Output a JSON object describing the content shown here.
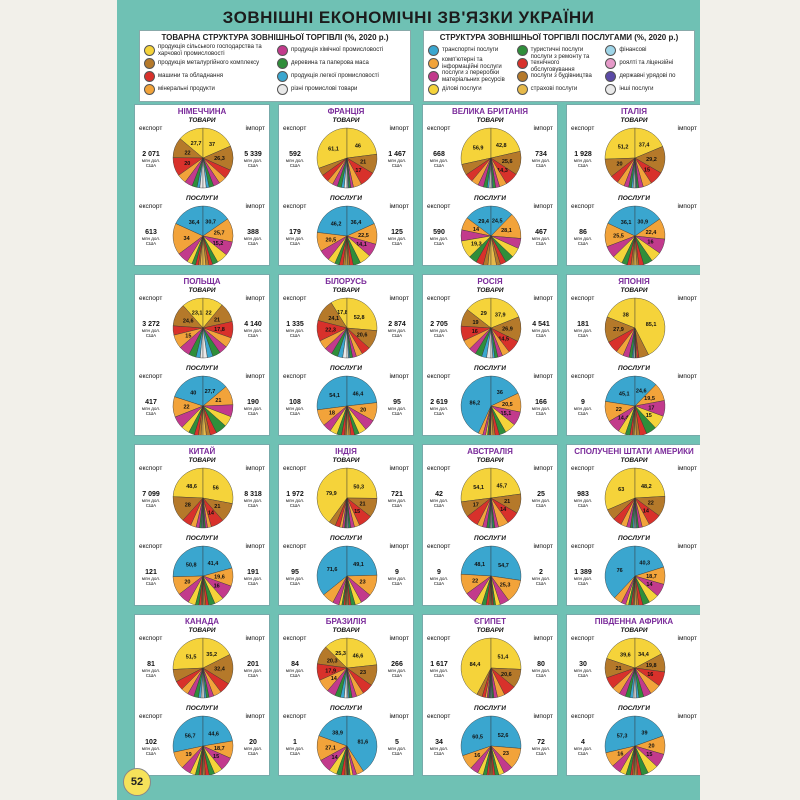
{
  "title": "ЗОВНІШНІ ЕКОНОМІЧНІ ЗВ'ЯЗКИ УКРАЇНИ",
  "page_number": "52",
  "legend_goods": {
    "title": "ТОВАРНА СТРУКТУРА ЗОВНІШНЬОЇ ТОРГІВЛІ (%, 2020 р.)",
    "items": [
      {
        "label": "продукція сільського господарства та харчової промисловості",
        "color": "#f5d33a"
      },
      {
        "label": "продукція металургійного комплексу",
        "color": "#b5792a"
      },
      {
        "label": "машини та обладнання",
        "color": "#d8312b"
      },
      {
        "label": "мінеральні продукти",
        "color": "#f2a33a"
      },
      {
        "label": "продукція хімічної промисловості",
        "color": "#c23a8c"
      },
      {
        "label": "деревина та паперова маса",
        "color": "#2f8e3a"
      },
      {
        "label": "продукція легкої промисловості",
        "color": "#3aa6cf"
      },
      {
        "label": "різні промислові товари",
        "color": "#e9e9e9"
      }
    ]
  },
  "legend_services": {
    "title": "СТРУКТУРА ЗОВНІШНЬОЇ ТОРГІВЛІ ПОСЛУГАМИ (%, 2020 р.)",
    "items": [
      {
        "label": "транспортні послуги",
        "color": "#3aa6cf"
      },
      {
        "label": "комп'ютерні та інформаційні послуги",
        "color": "#f2a33a"
      },
      {
        "label": "послуги з переробки матеріальних ресурсів",
        "color": "#c23a8c"
      },
      {
        "label": "ділові послуги",
        "color": "#f5d33a"
      },
      {
        "label": "туристичні послуги",
        "color": "#2f8e3a"
      },
      {
        "label": "послуги з ремонту та технічного обслуговування",
        "color": "#d8312b"
      },
      {
        "label": "послуги з будівництва",
        "color": "#b5792a"
      },
      {
        "label": "страхові послуги",
        "color": "#e6b94a"
      },
      {
        "label": "фінансові",
        "color": "#9fd5e8"
      },
      {
        "label": "роялті та ліцензійні",
        "color": "#e69ac9"
      },
      {
        "label": "державні урядові по",
        "color": "#5b4aa6"
      },
      {
        "label": "інші послуги",
        "color": "#e9e9e9"
      }
    ]
  },
  "labels": {
    "goods": "ТОВАРИ",
    "services": "ПОСЛУГИ",
    "export": "експорт",
    "import": "імпорт",
    "unit": "млн дол. США"
  },
  "chart_data": [
    {
      "type": "pie",
      "country": "НІМЕЧЧИНА",
      "goods": {
        "export_total": "2 071",
        "import_total": "5 339",
        "export": [
          27.7,
          22.0,
          20.0,
          10.0,
          8.5,
          5.4,
          3.0,
          3.4
        ],
        "import": [
          37.0,
          26.3,
          10.0,
          8.1,
          7.0,
          5.0,
          3.2,
          3.4
        ]
      },
      "services": {
        "export_total": "613",
        "import_total": "388",
        "export": [
          36.4,
          34.0,
          12.0,
          5.6,
          4.0,
          3.0,
          2.0,
          3.0
        ],
        "import": [
          30.7,
          25.7,
          15.2,
          12.0,
          6.0,
          4.0,
          3.4,
          3.0
        ]
      }
    },
    {
      "type": "pie",
      "country": "ФРАНЦІЯ",
      "goods": {
        "export_total": "592",
        "import_total": "1 467",
        "export": [
          61.1,
          8.6,
          8.1,
          6.2,
          5.5,
          4.5,
          3.0,
          3.0
        ],
        "import": [
          46.0,
          21.0,
          17.0,
          9.0,
          3.0,
          2.0,
          1.0,
          1.0
        ]
      },
      "services": {
        "export_total": "179",
        "import_total": "125",
        "export": [
          46.2,
          20.5,
          12.0,
          8.0,
          5.0,
          4.0,
          2.3,
          2.0
        ],
        "import": [
          36.4,
          22.5,
          14.1,
          12.2,
          8.0,
          3.9,
          2.0,
          0.9
        ]
      }
    },
    {
      "type": "pie",
      "country": "ВЕЛИКА БРИТАНІЯ",
      "goods": {
        "export_total": "668",
        "import_total": "734",
        "export": [
          56.9,
          12.0,
          9.0,
          8.0,
          6.0,
          4.0,
          2.0,
          2.1
        ],
        "import": [
          42.8,
          25.6,
          14.3,
          8.0,
          4.3,
          3.0,
          1.0,
          1.0
        ]
      },
      "services": {
        "export_total": "590",
        "import_total": "467",
        "export": [
          29.4,
          14.0,
          12.0,
          19.3,
          9.0,
          8.0,
          5.0,
          3.3
        ],
        "import": [
          24.5,
          28.1,
          11.0,
          10.7,
          9.1,
          6.3,
          4.4,
          5.9
        ]
      }
    },
    {
      "type": "pie",
      "country": "ІТАЛІЯ",
      "goods": {
        "export_total": "1 928",
        "import_total": "",
        "export": [
          51.2,
          20.0,
          9.0,
          8.0,
          5.0,
          3.0,
          2.0,
          1.8
        ],
        "import": [
          37.4,
          29.2,
          15.0,
          9.5,
          5.0,
          2.2,
          1.0,
          0.7
        ]
      },
      "services": {
        "export_total": "86",
        "import_total": "",
        "export": [
          36.1,
          25.5,
          13.0,
          11.0,
          6.0,
          4.0,
          2.4,
          2.0
        ],
        "import": [
          30.9,
          22.4,
          16.0,
          11.5,
          9.7,
          5.3,
          2.2,
          2.0
        ]
      }
    },
    {
      "type": "pie",
      "country": "ПОЛЬЩА",
      "goods": {
        "export_total": "3 272",
        "import_total": "4 140",
        "export": [
          23.1,
          24.6,
          10.0,
          15.0,
          11.8,
          8.0,
          4.5,
          3.0
        ],
        "import": [
          22.0,
          21.0,
          17.8,
          11.0,
          9.0,
          8.5,
          6.1,
          4.6
        ]
      },
      "services": {
        "export_total": "417",
        "import_total": "190",
        "export": [
          40.0,
          22.0,
          13.3,
          9.0,
          6.4,
          4.2,
          3.1,
          2.0
        ],
        "import": [
          27.7,
          21.0,
          13.0,
          11.4,
          12.0,
          7.0,
          4.3,
          3.6
        ]
      }
    },
    {
      "type": "pie",
      "country": "БІЛОРУСЬ",
      "goods": {
        "export_total": "1 335",
        "import_total": "2 874",
        "export": [
          17.8,
          24.1,
          22.3,
          10.1,
          8.5,
          7.1,
          5.5,
          4.6
        ],
        "import": [
          52.8,
          20.6,
          9.5,
          6.9,
          4.2,
          3.0,
          1.5,
          1.5
        ]
      },
      "services": {
        "export_total": "108",
        "import_total": "95",
        "export": [
          54.1,
          18.0,
          9.0,
          8.0,
          5.0,
          3.3,
          1.5,
          1.1
        ],
        "import": [
          46.4,
          20.0,
          12.0,
          8.4,
          5.0,
          4.0,
          2.2,
          2.0
        ]
      }
    },
    {
      "type": "pie",
      "country": "РОСІЯ",
      "goods": {
        "export_total": "2 705",
        "import_total": "4 541",
        "export": [
          29.0,
          19.0,
          16.0,
          10.6,
          8.0,
          7.4,
          5.3,
          4.7
        ],
        "import": [
          37.9,
          26.9,
          14.5,
          8.2,
          5.1,
          3.4,
          2.2,
          1.8
        ]
      },
      "services": {
        "export_total": "2 619",
        "import_total": "166",
        "export": [
          86.2,
          5.0,
          3.0,
          2.0,
          1.5,
          1.1,
          0.7,
          0.5
        ],
        "import": [
          36.0,
          20.5,
          15.1,
          12.0,
          7.4,
          4.5,
          2.5,
          2.0
        ]
      }
    },
    {
      "type": "pie",
      "country": "ЯПОНІЯ",
      "goods": {
        "export_total": "181",
        "import_total": "",
        "export": [
          38.0,
          27.9,
          13.0,
          8.0,
          6.7,
          3.4,
          1.5,
          1.5
        ],
        "import": [
          85.1,
          10.8,
          2.0,
          1.1,
          0.5,
          0.3,
          0.1,
          0.1
        ]
      },
      "services": {
        "export_total": "9",
        "import_total": "",
        "export": [
          45.1,
          22.0,
          14.4,
          8.0,
          5.0,
          2.6,
          1.7,
          1.2
        ],
        "import": [
          24.6,
          19.5,
          17.0,
          15.0,
          11.2,
          7.5,
          3.7,
          1.5
        ]
      }
    },
    {
      "type": "pie",
      "country": "КИТАЙ",
      "goods": {
        "export_total": "7 099",
        "import_total": "8 318",
        "export": [
          48.6,
          28.0,
          10.0,
          6.0,
          3.7,
          2.0,
          1.0,
          0.7
        ],
        "import": [
          56.0,
          21.0,
          14.0,
          4.2,
          2.3,
          1.5,
          0.6,
          0.4
        ]
      },
      "services": {
        "export_total": "121",
        "import_total": "191",
        "export": [
          50.8,
          20.0,
          13.0,
          8.0,
          3.8,
          2.5,
          1.2,
          0.7
        ],
        "import": [
          41.4,
          19.6,
          16.0,
          10.0,
          6.8,
          3.2,
          2.0,
          1.0
        ]
      }
    },
    {
      "type": "pie",
      "country": "ІНДІЯ",
      "goods": {
        "export_total": "1 972",
        "import_total": "721",
        "export": [
          79.9,
          7.3,
          5.0,
          3.0,
          2.3,
          1.1,
          0.7,
          0.7
        ],
        "import": [
          50.3,
          21.0,
          15.0,
          5.6,
          4.2,
          2.0,
          1.0,
          0.9
        ]
      },
      "services": {
        "export_total": "95",
        "import_total": "9",
        "export": [
          71.6,
          12.8,
          7.0,
          3.0,
          2.0,
          1.6,
          1.0,
          1.0
        ],
        "import": [
          49.1,
          23.0,
          12.0,
          7.0,
          4.5,
          2.4,
          1.0,
          1.0
        ]
      }
    },
    {
      "type": "pie",
      "country": "АВСТРАЛІЯ",
      "goods": {
        "export_total": "42",
        "import_total": "25",
        "export": [
          54.1,
          17.0,
          13.8,
          6.0,
          4.6,
          2.5,
          1.0,
          1.0
        ],
        "import": [
          45.7,
          21.0,
          14.0,
          11.2,
          4.1,
          2.0,
          1.0,
          1.0
        ]
      },
      "services": {
        "export_total": "9",
        "import_total": "2",
        "export": [
          48.1,
          22.0,
          12.0,
          8.0,
          4.6,
          3.0,
          1.3,
          1.0
        ],
        "import": [
          54.7,
          25.3,
          10.0,
          5.0,
          2.3,
          1.4,
          0.8,
          0.5
        ]
      }
    },
    {
      "type": "pie",
      "country": "СПОЛУЧЕНІ ШТАТИ АМЕРИКИ",
      "goods": {
        "export_total": "983",
        "import_total": "",
        "export": [
          63.0,
          12.0,
          9.5,
          6.5,
          4.0,
          2.5,
          1.5,
          1.0
        ],
        "import": [
          48.2,
          22.0,
          14.0,
          8.0,
          4.0,
          2.0,
          1.0,
          0.8
        ]
      },
      "services": {
        "export_total": "1 389",
        "import_total": "",
        "export": [
          76.0,
          9.0,
          5.0,
          3.0,
          2.8,
          2.0,
          1.2,
          1.0
        ],
        "import": [
          40.3,
          18.7,
          14.0,
          11.0,
          7.5,
          4.5,
          2.5,
          1.5
        ]
      }
    },
    {
      "type": "pie",
      "country": "КАНАДА",
      "goods": {
        "export_total": "81",
        "import_total": "201",
        "export": [
          51.5,
          13.6,
          10.0,
          8.0,
          7.0,
          5.0,
          2.9,
          2.0
        ],
        "import": [
          35.2,
          32.4,
          12.0,
          8.8,
          5.1,
          3.0,
          2.0,
          1.5
        ]
      },
      "services": {
        "export_total": "102",
        "import_total": "20",
        "export": [
          56.7,
          19.0,
          10.0,
          6.0,
          4.0,
          2.5,
          1.0,
          0.8
        ],
        "import": [
          44.6,
          18.7,
          15.0,
          9.0,
          6.0,
          4.0,
          1.6,
          1.1
        ]
      }
    },
    {
      "type": "pie",
      "country": "БРАЗИЛІЯ",
      "goods": {
        "export_total": "84",
        "import_total": "266",
        "export": [
          25.3,
          20.3,
          17.9,
          14.0,
          9.5,
          6.0,
          4.0,
          3.0
        ],
        "import": [
          46.6,
          23.0,
          12.0,
          8.0,
          5.0,
          3.0,
          1.4,
          1.0
        ]
      },
      "services": {
        "export_total": "1",
        "import_total": "5",
        "export": [
          38.9,
          27.1,
          14.0,
          8.7,
          5.2,
          3.5,
          1.6,
          1.0
        ],
        "import": [
          81.6,
          8.0,
          4.0,
          3.0,
          1.8,
          0.8,
          0.5,
          0.3
        ]
      }
    },
    {
      "type": "pie",
      "country": "ЄГИПЕТ",
      "goods": {
        "export_total": "1 617",
        "import_total": "80",
        "export": [
          84.4,
          6.0,
          3.5,
          2.0,
          1.6,
          1.1,
          0.8,
          0.6
        ],
        "import": [
          51.4,
          20.6,
          13.0,
          8.0,
          4.0,
          1.6,
          0.8,
          0.6
        ]
      },
      "services": {
        "export_total": "34",
        "import_total": "72",
        "export": [
          60.5,
          16.0,
          9.0,
          6.0,
          4.0,
          2.3,
          1.2,
          1.0
        ],
        "import": [
          52.6,
          23.0,
          10.0,
          6.0,
          4.0,
          2.4,
          1.2,
          0.8
        ]
      }
    },
    {
      "type": "pie",
      "country": "ПІВДЕННА АФРИКА",
      "goods": {
        "export_total": "30",
        "import_total": "",
        "export": [
          39.6,
          21.0,
          13.0,
          9.0,
          7.0,
          5.0,
          3.4,
          2.0
        ],
        "import": [
          34.4,
          19.8,
          16.0,
          12.0,
          8.4,
          5.2,
          2.6,
          1.6
        ]
      },
      "services": {
        "export_total": "4",
        "import_total": "",
        "export": [
          57.3,
          16.0,
          10.0,
          7.0,
          4.7,
          2.5,
          1.5,
          1.0
        ],
        "import": [
          39.0,
          20.0,
          15.0,
          11.5,
          7.5,
          4.0,
          1.8,
          1.2
        ]
      }
    }
  ]
}
